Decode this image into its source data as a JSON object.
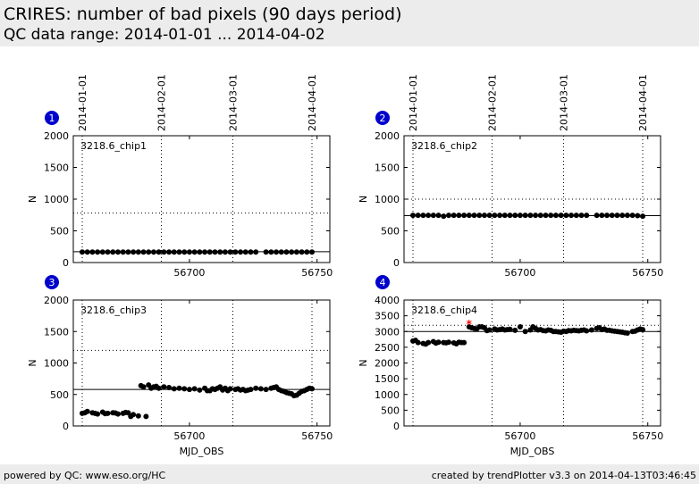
{
  "header": {
    "title": "CRIRES: number of bad pixels (90 days period)",
    "subtitle": "QC data range: 2014-01-01 ... 2014-04-02"
  },
  "footer": {
    "left": "powered by QC: www.eso.org/HC",
    "right": "created by trendPlotter v3.3 on 2014-04-13T03:46:45"
  },
  "colors": {
    "points": "#000000",
    "outlier": "#ff0000",
    "badge": "#0000cc"
  },
  "chart_data": [
    {
      "type": "scatter",
      "panel": "1",
      "label": "3218.6_chip1",
      "ylabel": "N",
      "xlabel": "",
      "xlim": [
        56654.5,
        56755
      ],
      "ylim": [
        0,
        2000
      ],
      "xticks": [
        56700,
        56750
      ],
      "yticks": [
        0,
        500,
        1000,
        1500,
        2000
      ],
      "date_lines": [
        {
          "x": 56658,
          "label": "2014-01-01"
        },
        {
          "x": 56689,
          "label": "2014-02-01"
        },
        {
          "x": 56717,
          "label": "2014-03-01"
        },
        {
          "x": 56748,
          "label": "2014-04-01"
        }
      ],
      "reference_line": 170,
      "threshold_line": 780,
      "x": [
        56658,
        56660,
        56662,
        56664,
        56666,
        56668,
        56670,
        56672,
        56674,
        56676,
        56678,
        56680,
        56682,
        56684,
        56686,
        56688,
        56690,
        56692,
        56694,
        56696,
        56698,
        56700,
        56702,
        56704,
        56706,
        56708,
        56710,
        56712,
        56714,
        56716,
        56718,
        56720,
        56722,
        56724,
        56726,
        56730,
        56732,
        56734,
        56736,
        56738,
        56740,
        56742,
        56744,
        56746,
        56748
      ],
      "y": [
        165,
        165,
        165,
        165,
        165,
        165,
        165,
        165,
        165,
        165,
        165,
        165,
        165,
        165,
        165,
        165,
        165,
        165,
        165,
        165,
        165,
        165,
        165,
        165,
        165,
        165,
        165,
        165,
        165,
        165,
        165,
        165,
        165,
        165,
        165,
        165,
        165,
        165,
        165,
        165,
        165,
        165,
        165,
        165,
        165
      ],
      "outliers": []
    },
    {
      "type": "scatter",
      "panel": "2",
      "label": "3218.6_chip2",
      "ylabel": "N",
      "xlabel": "",
      "xlim": [
        56654.5,
        56755
      ],
      "ylim": [
        0,
        2000
      ],
      "xticks": [
        56700,
        56750
      ],
      "yticks": [
        0,
        500,
        1000,
        1500,
        2000
      ],
      "date_lines": [
        {
          "x": 56658,
          "label": "2014-01-01"
        },
        {
          "x": 56689,
          "label": "2014-02-01"
        },
        {
          "x": 56717,
          "label": "2014-03-01"
        },
        {
          "x": 56748,
          "label": "2014-04-01"
        }
      ],
      "reference_line": 740,
      "threshold_line": 1000,
      "x": [
        56658,
        56660,
        56662,
        56664,
        56666,
        56668,
        56670,
        56672,
        56674,
        56676,
        56678,
        56680,
        56682,
        56684,
        56686,
        56688,
        56690,
        56692,
        56694,
        56696,
        56698,
        56700,
        56702,
        56704,
        56706,
        56708,
        56710,
        56712,
        56714,
        56716,
        56718,
        56720,
        56722,
        56724,
        56726,
        56730,
        56732,
        56734,
        56736,
        56738,
        56740,
        56742,
        56744,
        56746,
        56748
      ],
      "y": [
        745,
        745,
        745,
        745,
        745,
        745,
        730,
        745,
        745,
        745,
        745,
        745,
        745,
        745,
        745,
        745,
        745,
        745,
        745,
        745,
        745,
        745,
        745,
        745,
        745,
        745,
        745,
        745,
        745,
        745,
        745,
        745,
        745,
        745,
        745,
        745,
        745,
        745,
        745,
        745,
        745,
        745,
        745,
        740,
        730
      ],
      "outliers": []
    },
    {
      "type": "scatter",
      "panel": "3",
      "label": "3218.6_chip3",
      "ylabel": "N",
      "xlabel": "MJD_OBS",
      "xlim": [
        56654.5,
        56755
      ],
      "ylim": [
        0,
        2000
      ],
      "xticks": [
        56700,
        56750
      ],
      "yticks": [
        0,
        500,
        1000,
        1500,
        2000
      ],
      "date_lines": [
        {
          "x": 56658,
          "label": "2014-01-01"
        },
        {
          "x": 56689,
          "label": "2014-02-01"
        },
        {
          "x": 56717,
          "label": "2014-03-01"
        },
        {
          "x": 56748,
          "label": "2014-04-01"
        }
      ],
      "reference_line": 580,
      "threshold_line": 1200,
      "x": [
        56658,
        56660,
        56662,
        56664,
        56666,
        56668,
        56670,
        56672,
        56674,
        56676,
        56678,
        56680,
        56682,
        56684,
        56686,
        56688,
        56690,
        56692,
        56694,
        56696,
        56698,
        56700,
        56702,
        56704,
        56706,
        56708,
        56710,
        56712,
        56714,
        56716,
        56718,
        56720,
        56722,
        56724,
        56726,
        56728,
        56730,
        56732,
        56734,
        56736,
        56738,
        56740,
        56742,
        56744,
        56746,
        56748
      ],
      "y": [
        200,
        230,
        210,
        190,
        220,
        200,
        210,
        190,
        200,
        210,
        180,
        160,
        620,
        650,
        620,
        600,
        620,
        610,
        590,
        600,
        590,
        580,
        590,
        570,
        600,
        560,
        580,
        620,
        600,
        590,
        580,
        570,
        560,
        580,
        600,
        590,
        580,
        600,
        620,
        560,
        530,
        510,
        490,
        550,
        580,
        590
      ],
      "extra_points": [
        [
          56659,
          210
        ],
        [
          56663,
          200
        ],
        [
          56667,
          195
        ],
        [
          56671,
          205
        ],
        [
          56675,
          215
        ],
        [
          56677,
          150
        ],
        [
          56681,
          640
        ],
        [
          56683,
          150
        ],
        [
          56685,
          600
        ],
        [
          56687,
          630
        ],
        [
          56707,
          560
        ],
        [
          56709,
          590
        ],
        [
          56711,
          600
        ],
        [
          56713,
          570
        ],
        [
          56715,
          560
        ],
        [
          56719,
          590
        ],
        [
          56721,
          580
        ],
        [
          56723,
          570
        ],
        [
          56733,
          610
        ],
        [
          56735,
          580
        ],
        [
          56737,
          550
        ],
        [
          56739,
          520
        ],
        [
          56741,
          480
        ],
        [
          56743,
          520
        ],
        [
          56745,
          560
        ],
        [
          56747,
          600
        ]
      ],
      "outliers": []
    },
    {
      "type": "scatter",
      "panel": "4",
      "label": "3218.6_chip4",
      "ylabel": "N",
      "xlabel": "MJD_OBS",
      "xlim": [
        56654.5,
        56755
      ],
      "ylim": [
        0,
        4000
      ],
      "xticks": [
        56700,
        56750
      ],
      "yticks": [
        0,
        500,
        1000,
        1500,
        2000,
        2500,
        3000,
        3500,
        4000
      ],
      "date_lines": [
        {
          "x": 56658,
          "label": "2014-01-01"
        },
        {
          "x": 56689,
          "label": "2014-02-01"
        },
        {
          "x": 56717,
          "label": "2014-03-01"
        },
        {
          "x": 56748,
          "label": "2014-04-01"
        }
      ],
      "reference_line": 3000,
      "threshold_line": 3200,
      "x": [
        56658,
        56660,
        56662,
        56664,
        56666,
        56668,
        56670,
        56672,
        56674,
        56676,
        56678,
        56680,
        56682,
        56684,
        56686,
        56688,
        56690,
        56692,
        56694,
        56696,
        56698,
        56700,
        56702,
        56704,
        56706,
        56708,
        56710,
        56712,
        56714,
        56716,
        56718,
        56720,
        56722,
        56724,
        56726,
        56728,
        56730,
        56732,
        56734,
        56736,
        56738,
        56740,
        56742,
        56744,
        56746,
        56748
      ],
      "y": [
        2700,
        2650,
        2620,
        2650,
        2680,
        2660,
        2650,
        2660,
        2640,
        2660,
        2650,
        3150,
        3100,
        3150,
        3120,
        3050,
        3080,
        3060,
        3050,
        3070,
        3040,
        3150,
        3000,
        3050,
        3100,
        3060,
        3020,
        3040,
        3000,
        2980,
        3000,
        3020,
        3030,
        3040,
        3020,
        3050,
        3100,
        3060,
        3040,
        3020,
        3000,
        2980,
        2950,
        3000,
        3050,
        3060
      ],
      "extra_points": [
        [
          56659,
          2720
        ],
        [
          56663,
          2600
        ],
        [
          56667,
          2630
        ],
        [
          56671,
          2640
        ],
        [
          56675,
          2610
        ],
        [
          56677,
          2650
        ],
        [
          56681,
          3120
        ],
        [
          56683,
          3080
        ],
        [
          56685,
          3150
        ],
        [
          56687,
          3030
        ],
        [
          56691,
          3050
        ],
        [
          56693,
          3080
        ],
        [
          56695,
          3060
        ],
        [
          56705,
          3150
        ],
        [
          56707,
          3050
        ],
        [
          56709,
          3030
        ],
        [
          56711,
          3050
        ],
        [
          56713,
          3000
        ],
        [
          56715,
          2990
        ],
        [
          56717,
          3010
        ],
        [
          56719,
          3030
        ],
        [
          56721,
          3040
        ],
        [
          56723,
          3020
        ],
        [
          56725,
          3050
        ],
        [
          56731,
          3120
        ],
        [
          56733,
          3080
        ],
        [
          56735,
          3040
        ],
        [
          56737,
          3010
        ],
        [
          56739,
          2990
        ],
        [
          56741,
          2960
        ],
        [
          56745,
          3010
        ],
        [
          56747,
          3080
        ]
      ],
      "outliers": [
        [
          56680,
          3230
        ]
      ]
    }
  ]
}
